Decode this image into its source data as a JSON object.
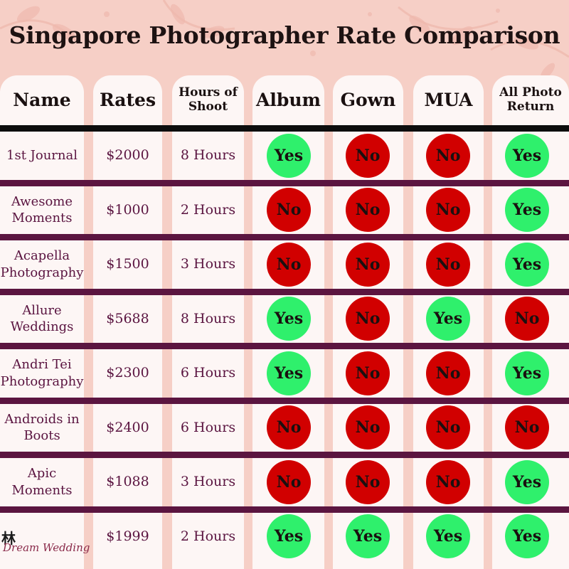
{
  "title": "Singapore Photographer Rate Comparison",
  "headers": {
    "name": "Name",
    "rates": "Rates",
    "hours_line1": "Hours of",
    "hours_line2": "Shoot",
    "album": "Album",
    "gown": "Gown",
    "mua": "MUA",
    "photo_line1": "All Photo",
    "photo_line2": "Return"
  },
  "colors": {
    "yes": "#2ff06c",
    "no": "#d10000",
    "separator": "#5b1540",
    "text": "#5a1440"
  },
  "rows": [
    {
      "name1": "1st Journal",
      "name2": "",
      "rate": "$2000",
      "hours": "8 Hours",
      "album": "Yes",
      "gown": "No",
      "mua": "No",
      "photo": "Yes"
    },
    {
      "name1": "Awesome",
      "name2": "Moments",
      "rate": "$1000",
      "hours": "2 Hours",
      "album": "No",
      "gown": "No",
      "mua": "No",
      "photo": "Yes"
    },
    {
      "name1": "Acapella",
      "name2": "Photography",
      "rate": "$1500",
      "hours": "3 Hours",
      "album": "No",
      "gown": "No",
      "mua": "No",
      "photo": "Yes"
    },
    {
      "name1": "Allure",
      "name2": "Weddings",
      "rate": "$5688",
      "hours": "8 Hours",
      "album": "Yes",
      "gown": "No",
      "mua": "Yes",
      "photo": "No"
    },
    {
      "name1": "Andri Tei",
      "name2": "Photography",
      "rate": "$2300",
      "hours": "6 Hours",
      "album": "Yes",
      "gown": "No",
      "mua": "No",
      "photo": "Yes"
    },
    {
      "name1": "Androids in",
      "name2": "Boots",
      "rate": "$2400",
      "hours": "6 Hours",
      "album": "No",
      "gown": "No",
      "mua": "No",
      "photo": "No"
    },
    {
      "name1": "Apic",
      "name2": "Moments",
      "rate": "$1088",
      "hours": "3 Hours",
      "album": "No",
      "gown": "No",
      "mua": "No",
      "photo": "Yes"
    },
    {
      "name1": "",
      "name2": "",
      "rate": "$1999",
      "hours": "2 Hours",
      "album": "Yes",
      "gown": "Yes",
      "mua": "Yes",
      "photo": "Yes"
    }
  ],
  "logo": {
    "kanji": "林",
    "word": "Dream Wedding"
  }
}
